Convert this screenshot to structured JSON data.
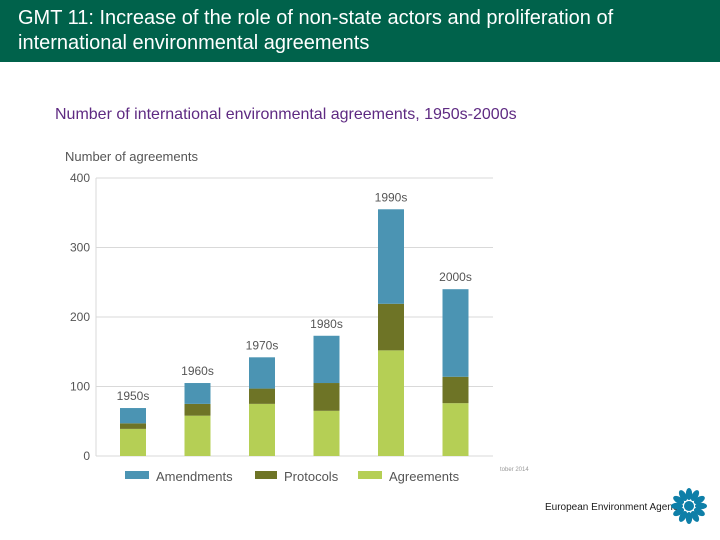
{
  "header": {
    "title": "GMT 11: Increase of the role of non-state actors and proliferation of international environmental agreements"
  },
  "chart_data": {
    "type": "bar",
    "stacked": true,
    "title": "Number of international environmental agreements, 1950s-2000s",
    "ylabel": "Number of agreements",
    "xlabel": "",
    "categories": [
      "1950s",
      "1960s",
      "1970s",
      "1980s",
      "1990s",
      "2000s"
    ],
    "ylim": [
      0,
      400
    ],
    "yticks": [
      "0",
      "100",
      "200",
      "300",
      "400"
    ],
    "series": [
      {
        "name": "Agreements",
        "color": "#b5cf55",
        "values": [
          39,
          58,
          75,
          65,
          152,
          76
        ]
      },
      {
        "name": "Protocols",
        "color": "#6e7426",
        "values": [
          8,
          17,
          22,
          40,
          67,
          38
        ]
      },
      {
        "name": "Amendments",
        "color": "#4b94b3",
        "values": [
          22,
          30,
          45,
          68,
          136,
          126
        ]
      }
    ],
    "legend": [
      "Amendments",
      "Protocols",
      "Agreements"
    ],
    "grid": true,
    "legend_position": "bottom"
  },
  "source_note": "tober 2014",
  "footer": {
    "org_name": "European Environment Agency",
    "logo_color": "#0e7fa8"
  }
}
